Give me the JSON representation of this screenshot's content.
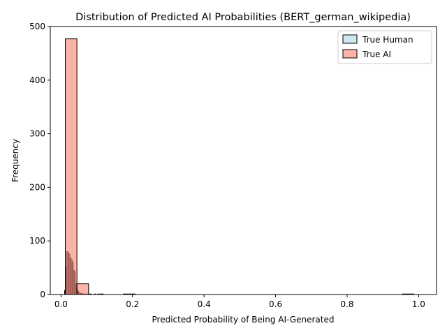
{
  "chart_data": {
    "type": "bar",
    "title": "Distribution of Predicted AI Probabilities (BERT_german_wikipedia)",
    "xlabel": "Predicted Probability of Being AI-Generated",
    "ylabel": "Frequency",
    "xlim": [
      -0.03,
      1.05
    ],
    "ylim": [
      0,
      500
    ],
    "xticks": [
      "0.0",
      "0.2",
      "0.4",
      "0.6",
      "0.8",
      "1.0"
    ],
    "yticks": [
      "0",
      "100",
      "200",
      "300",
      "400",
      "500"
    ],
    "legend_position": "top-right",
    "series": [
      {
        "name": "True Human",
        "color": "#add8e6",
        "bin_edges": [
          0.01,
          0.013,
          0.016,
          0.019,
          0.022,
          0.025,
          0.028,
          0.031,
          0.034,
          0.037,
          0.04,
          0.043,
          0.046,
          0.049,
          0.052,
          0.055,
          0.058,
          0.061,
          0.064,
          0.067,
          0.07,
          0.073,
          0.076,
          0.079,
          0.082,
          0.085,
          0.088,
          0.091,
          0.094,
          0.097,
          0.1,
          0.103,
          0.106,
          0.109,
          0.112,
          0.115,
          0.118
        ],
        "counts": [
          8,
          50,
          80,
          78,
          75,
          68,
          65,
          60,
          45,
          42,
          20,
          10,
          6,
          4,
          2,
          2,
          1,
          1,
          1,
          0,
          1,
          0,
          1,
          0,
          1,
          0,
          0,
          0,
          1,
          0,
          0,
          1,
          0,
          1,
          1,
          1
        ]
      },
      {
        "name": "True AI",
        "color": "#fa8072",
        "bin_edges": [
          0.012,
          0.0445,
          0.077,
          0.1095,
          0.142,
          0.1745,
          0.207,
          0.2395,
          0.272,
          0.3045,
          0.337,
          0.3695,
          0.402,
          0.4345,
          0.467,
          0.4995,
          0.532,
          0.5645,
          0.597,
          0.6295,
          0.662,
          0.6945,
          0.727,
          0.7595,
          0.792,
          0.8245,
          0.857,
          0.8895,
          0.922,
          0.9545,
          0.987
        ],
        "counts": [
          477,
          20,
          0,
          0,
          0,
          1,
          0,
          0,
          0,
          0,
          0,
          0,
          0,
          0,
          0,
          0,
          0,
          0,
          0,
          0,
          0,
          0,
          0,
          0,
          0,
          0,
          0,
          0,
          0,
          1
        ]
      }
    ]
  }
}
